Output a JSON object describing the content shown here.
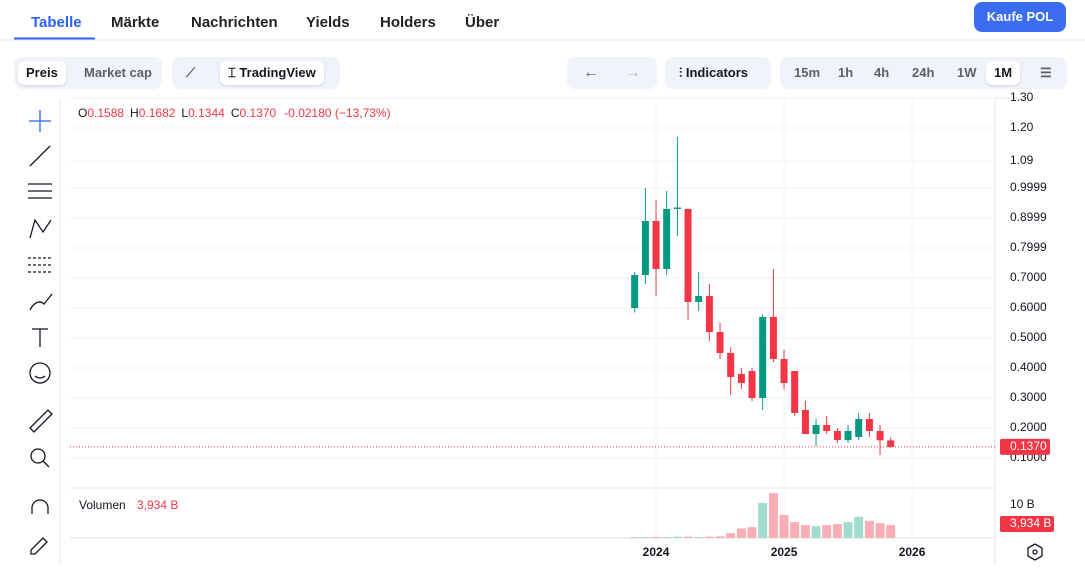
{
  "nav": {
    "tabs": [
      "Tabelle",
      "Märkte",
      "Nachrichten",
      "Yields",
      "Holders",
      "Über"
    ],
    "buy_button": "Kaufe POL"
  },
  "toolbar": {
    "modes": [
      "Preis",
      "Market cap"
    ],
    "chart_style": "TradingView",
    "indicators": "Indicators",
    "timeframes": [
      "15m",
      "1h",
      "4h",
      "24h",
      "1W",
      "1M"
    ]
  },
  "chart": {
    "type": "candlestick",
    "legend": [
      {
        "key": "O",
        "value": "0.1588"
      },
      {
        "key": "H",
        "value": "0.1682"
      },
      {
        "key": "L",
        "value": "0.1344"
      },
      {
        "key": "C",
        "value": "0.1370"
      }
    ],
    "change": "-0.02180 (−13,73%)",
    "x": [
      2023.833,
      2023.917,
      2024,
      2024.083,
      2024.167,
      2024.25,
      2024.333,
      2024.417,
      2024.5,
      2024.583,
      2024.667,
      2024.75,
      2024.833,
      2024.917,
      2025,
      2025.083,
      2025.167,
      2025.25,
      2025.333,
      2025.417,
      2025.5,
      2025.583,
      2025.667,
      2025.75,
      2025.833
    ],
    "open": [
      0.6,
      0.71,
      0.89,
      0.73,
      0.93,
      0.93,
      0.62,
      0.64,
      0.52,
      0.45,
      0.38,
      0.39,
      0.3,
      0.57,
      0.43,
      0.39,
      0.26,
      0.18,
      0.21,
      0.19,
      0.16,
      0.17,
      0.23,
      0.19,
      0.1588
    ],
    "high": [
      0.72,
      1.0,
      0.96,
      0.99,
      1.17,
      0.93,
      0.72,
      0.68,
      0.55,
      0.47,
      0.4,
      0.4,
      0.58,
      0.73,
      0.46,
      0.39,
      0.29,
      0.23,
      0.24,
      0.2,
      0.21,
      0.25,
      0.25,
      0.21,
      0.1682
    ],
    "low": [
      0.585,
      0.68,
      0.64,
      0.71,
      0.84,
      0.56,
      0.59,
      0.49,
      0.43,
      0.31,
      0.33,
      0.29,
      0.26,
      0.42,
      0.33,
      0.24,
      0.18,
      0.14,
      0.18,
      0.15,
      0.15,
      0.16,
      0.17,
      0.11,
      0.1344
    ],
    "close": [
      0.71,
      0.89,
      0.73,
      0.93,
      0.935,
      0.62,
      0.64,
      0.52,
      0.45,
      0.37,
      0.35,
      0.3,
      0.57,
      0.43,
      0.35,
      0.25,
      0.18,
      0.21,
      0.19,
      0.16,
      0.19,
      0.23,
      0.19,
      0.159,
      0.137
    ],
    "up_color": "#089981",
    "down_color": "#f23645",
    "xlim": [
      2019.422,
      2026.648
    ],
    "xticks": [
      2024,
      2025,
      2026
    ],
    "ylim": [
      0,
      1.3
    ],
    "yticks": [
      {
        "value": 0.1,
        "label": "0.1000"
      },
      {
        "value": 0.2,
        "label": "0.2000"
      },
      {
        "value": 0.3,
        "label": "0.3000"
      },
      {
        "value": 0.4,
        "label": "0.4000"
      },
      {
        "value": 0.5,
        "label": "0.5000"
      },
      {
        "value": 0.6,
        "label": "0.6000"
      },
      {
        "value": 0.7,
        "label": "0.7000"
      },
      0.7999,
      0.8999,
      0.9999,
      1.09,
      {
        "value": 1.2,
        "label": "1.20"
      },
      {
        "value": 1.3,
        "label": "1.30"
      }
    ],
    "last_price": {
      "value": 0.137,
      "label": "0.1370"
    },
    "volume_title": "Volumen",
    "volumes": [
      0.3,
      0.3,
      0.3,
      0.3,
      0.4,
      0.4,
      0.3,
      0.4,
      0.5,
      1.5,
      2.9,
      3.3,
      10.6,
      13.6,
      7,
      4.8,
      3.9,
      3.6,
      3.9,
      4.2,
      4.8,
      6.4,
      5.2,
      4.5,
      3.934
    ],
    "volume_up_color": "#a3dbce",
    "volume_down_color": "#f9aeb6",
    "volume_ylim": [
      0,
      15.15
    ],
    "volume_yticks": [
      {
        "value": 10,
        "label": "10 B"
      }
    ],
    "volume_last": {
      "value": 3.934,
      "label": "3,934 B"
    }
  }
}
